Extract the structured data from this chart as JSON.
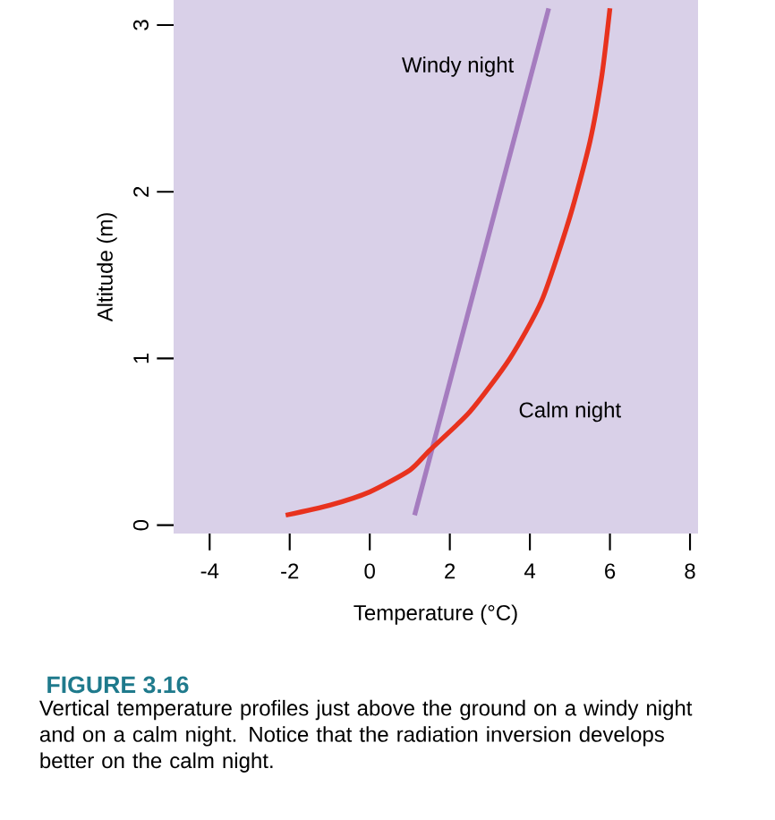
{
  "chart_data": {
    "type": "line",
    "title": "FIGURE 3.16",
    "xlabel": "Temperature (°C)",
    "ylabel": "Altitude (m)",
    "annotations": [
      "Vertical temperature profiles just above the ground on a windy night and on a calm night. Notice that the radiation inversion develops better on the calm night."
    ],
    "xlim": [
      -4.9,
      8.2
    ],
    "ylim": [
      -0.05,
      3.15
    ],
    "xticks": [
      -4,
      -2,
      0,
      2,
      4,
      6,
      8
    ],
    "yticks": [
      0,
      1,
      2,
      3
    ],
    "legend": false,
    "grid": false,
    "marker": "none",
    "line_style": "solid",
    "series": [
      {
        "name": "Windy night",
        "color": "#a57cbf",
        "x": [
          1.12,
          4.47
        ],
        "values": [
          0.06,
          3.1
        ]
      },
      {
        "name": "Calm night",
        "color": "#e8321e",
        "x": [
          -2.1,
          -1,
          0,
          1,
          1.5,
          2.5,
          3.5,
          4.3,
          5,
          5.5,
          5.8,
          6.0
        ],
        "values": [
          0.06,
          0.12,
          0.2,
          0.33,
          0.45,
          0.68,
          1.0,
          1.35,
          1.85,
          2.3,
          2.7,
          3.1
        ]
      }
    ]
  }
}
